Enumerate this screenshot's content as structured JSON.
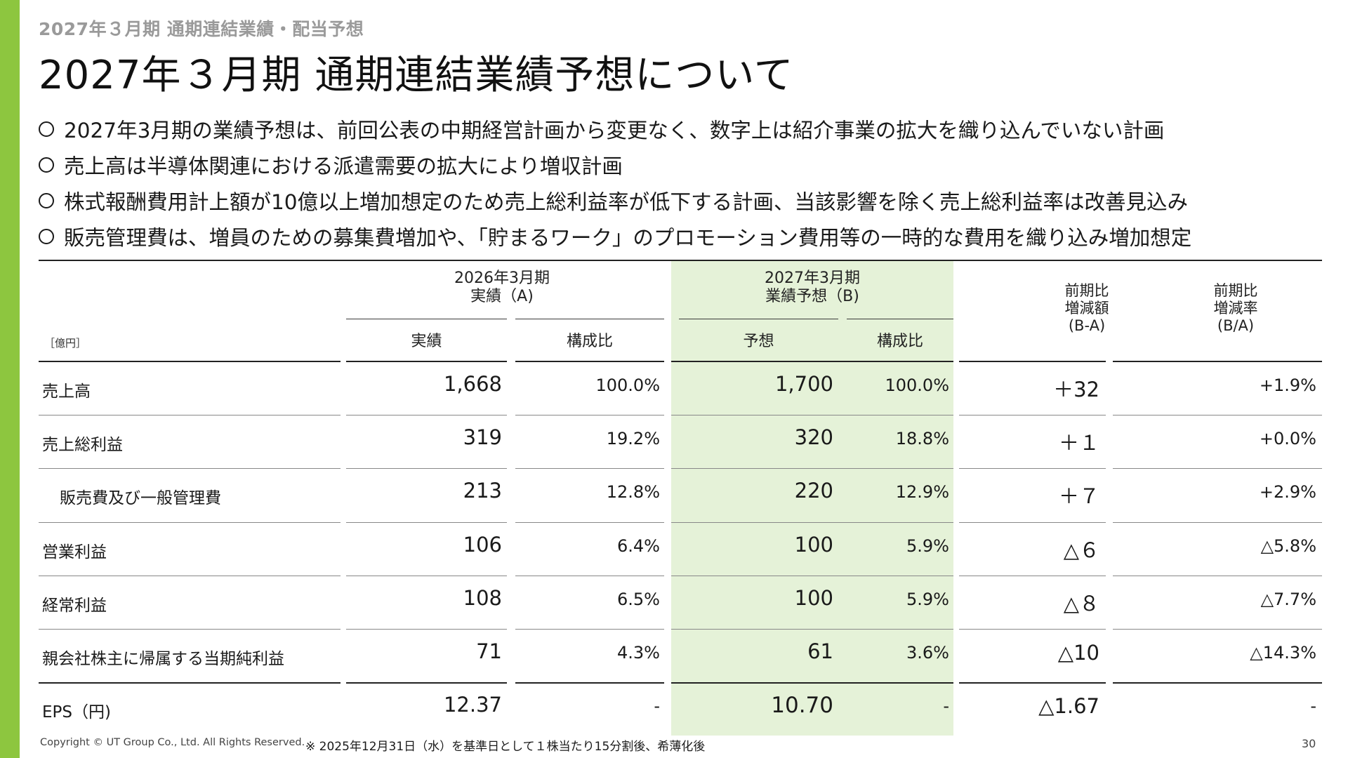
{
  "header": {
    "section": "2027年３月期 通期連結業績・配当予想",
    "title": "2027年３月期 通期連結業績予想について"
  },
  "bullets": [
    "2027年3月期の業績予想は、前回公表の中期経営計画から変更なく、数字上は紹介事業の拡大を織り込んでいない計画",
    "売上高は半導体関連における派遣需要の拡大により増収計画",
    "株式報酬費用計上額が10億以上増加想定のため売上総利益率が低下する計画、当該影響を除く売上総利益率は改善見込み",
    "販売管理費は、増員のための募集費増加や、「貯まるワーク」のプロモーション費用等の一時的な費用を織り込み増加想定"
  ],
  "table": {
    "unit": "［億円］",
    "group_a": [
      "2026年3月期",
      "実績（A)"
    ],
    "group_b": [
      "2027年3月期",
      "業績予想（B)"
    ],
    "col_a1": "実績",
    "col_a2": "構成比",
    "col_b1": "予想",
    "col_b2": "構成比",
    "col_diff": [
      "前期比",
      "増減額",
      "(B-A)"
    ],
    "col_rate": [
      "前期比",
      "増減率",
      "(B/A)"
    ],
    "rows": [
      {
        "label": "売上高",
        "a": "1,668",
        "a_ratio": "100.0%",
        "b": "1,700",
        "b_ratio": "100.0%",
        "diff": "＋32",
        "rate": "+1.9%"
      },
      {
        "label": "売上総利益",
        "a": "319",
        "a_ratio": "19.2%",
        "b": "320",
        "b_ratio": "18.8%",
        "diff": "＋１",
        "rate": "+0.0%"
      },
      {
        "label": "販売費及び一般管理費",
        "a": "213",
        "a_ratio": "12.8%",
        "b": "220",
        "b_ratio": "12.9%",
        "diff": "＋７",
        "rate": "+2.9%"
      },
      {
        "label": "営業利益",
        "a": "106",
        "a_ratio": "6.4%",
        "b": "100",
        "b_ratio": "5.9%",
        "diff": "△６",
        "rate": "△5.8%"
      },
      {
        "label": "経常利益",
        "a": "108",
        "a_ratio": "6.5%",
        "b": "100",
        "b_ratio": "5.9%",
        "diff": "△８",
        "rate": "△7.7%"
      },
      {
        "label": "親会社株主に帰属する当期純利益",
        "a": "71",
        "a_ratio": "4.3%",
        "b": "61",
        "b_ratio": "3.6%",
        "diff": "△10",
        "rate": "△14.3%"
      },
      {
        "label": "EPS（円)",
        "a": "12.37",
        "a_ratio": "-",
        "b": "10.70",
        "b_ratio": "-",
        "diff": "△1.67",
        "rate": "-"
      }
    ]
  },
  "footer": {
    "copyright": "Copyright © UT Group Co., Ltd. All Rights Reserved.",
    "note": "※ 2025年12月31日（水）を基準日として１株当たり15分割後、希薄化後",
    "page": "30"
  },
  "colors": {
    "accent": "#8dc63f",
    "forecast_bg": "#e5f2d8",
    "subtitle": "#9a9a9a"
  }
}
